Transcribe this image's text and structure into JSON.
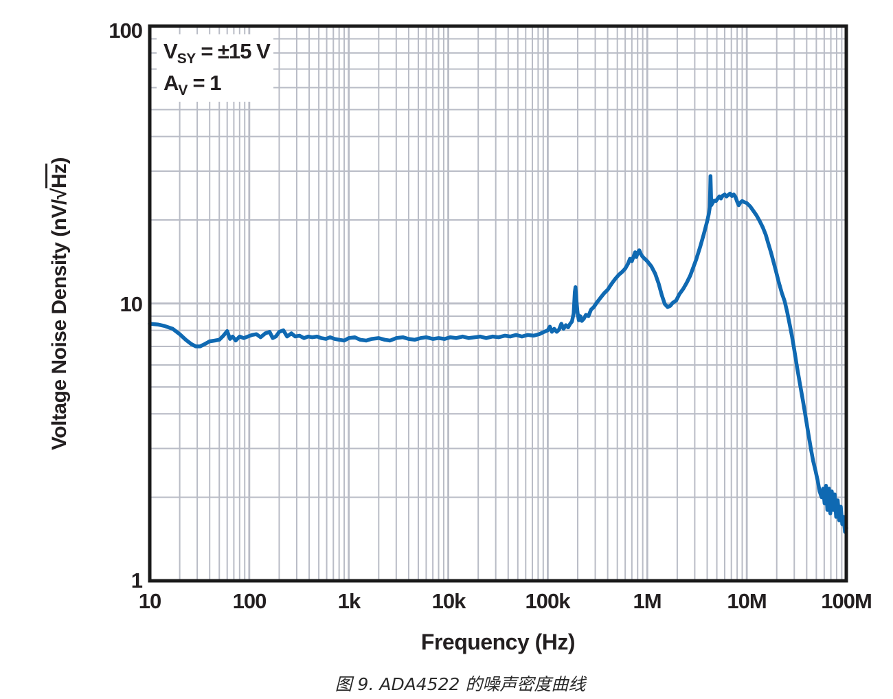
{
  "figure": {
    "caption": "图 9. ADA4522 的噪声密度曲线"
  },
  "annotation": {
    "line1": {
      "base": "V",
      "sub": "SY",
      "rest": " = ±15 V"
    },
    "line2": {
      "base": "A",
      "sub": "V",
      "rest": " = 1"
    }
  },
  "colors": {
    "curve": "#0F69B2",
    "grid": "#b9bcc6",
    "frame": "#1a1a1a",
    "text": "#231f20",
    "background": "#ffffff"
  },
  "chart_data": {
    "type": "line",
    "title": "",
    "xlabel": "Frequency (Hz)",
    "ylabel": "Voltage Noise Density (nV/√Hz)",
    "ylabel_parts": {
      "prefix": "Voltage Noise Density (nV/",
      "radical": "√",
      "overline": "Hz",
      "suffix": ")"
    },
    "x_scale": "log",
    "y_scale": "log",
    "xlim": [
      10,
      100000000
    ],
    "ylim": [
      1,
      100
    ],
    "grid": true,
    "legend": "none",
    "x_tick_labels": [
      "10",
      "100",
      "1k",
      "10k",
      "100k",
      "1M",
      "10M",
      "100M"
    ],
    "x_tick_values": [
      10,
      100,
      1000,
      10000,
      100000,
      1000000,
      10000000,
      100000000
    ],
    "y_tick_labels": [
      "100",
      "10",
      "1"
    ],
    "y_tick_values": [
      100,
      10,
      1
    ],
    "series": [
      {
        "name": "ADA4522 voltage noise density",
        "color": "#0F69B2",
        "points": [
          [
            10,
            8.45
          ],
          [
            12,
            8.4
          ],
          [
            14,
            8.3
          ],
          [
            17,
            8.1
          ],
          [
            20,
            7.75
          ],
          [
            23,
            7.4
          ],
          [
            26,
            7.15
          ],
          [
            29,
            7.0
          ],
          [
            32,
            7.0
          ],
          [
            36,
            7.15
          ],
          [
            40,
            7.3
          ],
          [
            45,
            7.35
          ],
          [
            50,
            7.4
          ],
          [
            55,
            7.65
          ],
          [
            60,
            7.95
          ],
          [
            64,
            7.45
          ],
          [
            68,
            7.6
          ],
          [
            73,
            7.35
          ],
          [
            80,
            7.6
          ],
          [
            88,
            7.5
          ],
          [
            97,
            7.6
          ],
          [
            107,
            7.7
          ],
          [
            118,
            7.75
          ],
          [
            130,
            7.55
          ],
          [
            145,
            7.8
          ],
          [
            160,
            7.9
          ],
          [
            172,
            7.5
          ],
          [
            185,
            7.6
          ],
          [
            200,
            7.9
          ],
          [
            220,
            8.0
          ],
          [
            240,
            7.6
          ],
          [
            265,
            7.8
          ],
          [
            290,
            7.6
          ],
          [
            320,
            7.65
          ],
          [
            355,
            7.5
          ],
          [
            390,
            7.6
          ],
          [
            430,
            7.55
          ],
          [
            480,
            7.6
          ],
          [
            530,
            7.5
          ],
          [
            590,
            7.45
          ],
          [
            650,
            7.55
          ],
          [
            720,
            7.45
          ],
          [
            800,
            7.4
          ],
          [
            900,
            7.35
          ],
          [
            1000,
            7.5
          ],
          [
            1150,
            7.55
          ],
          [
            1300,
            7.4
          ],
          [
            1500,
            7.35
          ],
          [
            1700,
            7.45
          ],
          [
            2000,
            7.5
          ],
          [
            2300,
            7.4
          ],
          [
            2600,
            7.35
          ],
          [
            3000,
            7.5
          ],
          [
            3500,
            7.55
          ],
          [
            4000,
            7.45
          ],
          [
            4600,
            7.4
          ],
          [
            5300,
            7.5
          ],
          [
            6000,
            7.55
          ],
          [
            7000,
            7.45
          ],
          [
            8000,
            7.5
          ],
          [
            9200,
            7.45
          ],
          [
            10500,
            7.55
          ],
          [
            12000,
            7.5
          ],
          [
            14000,
            7.6
          ],
          [
            16000,
            7.5
          ],
          [
            18500,
            7.55
          ],
          [
            21000,
            7.6
          ],
          [
            24000,
            7.5
          ],
          [
            28000,
            7.6
          ],
          [
            32000,
            7.55
          ],
          [
            37000,
            7.65
          ],
          [
            42000,
            7.6
          ],
          [
            48000,
            7.7
          ],
          [
            55000,
            7.6
          ],
          [
            63000,
            7.7
          ],
          [
            72000,
            7.65
          ],
          [
            82000,
            7.75
          ],
          [
            92000,
            7.9
          ],
          [
            100000,
            8.0
          ],
          [
            105000,
            8.25
          ],
          [
            110000,
            7.9
          ],
          [
            116000,
            8.1
          ],
          [
            123000,
            7.9
          ],
          [
            130000,
            8.05
          ],
          [
            137000,
            8.45
          ],
          [
            144000,
            8.1
          ],
          [
            152000,
            8.35
          ],
          [
            160000,
            8.2
          ],
          [
            168000,
            8.45
          ],
          [
            175000,
            8.6
          ],
          [
            182000,
            9.2
          ],
          [
            187000,
            11.0
          ],
          [
            190000,
            11.45
          ],
          [
            194000,
            10.3
          ],
          [
            199000,
            9.3
          ],
          [
            205000,
            8.7
          ],
          [
            212000,
            9.0
          ],
          [
            220000,
            8.65
          ],
          [
            230000,
            8.8
          ],
          [
            242000,
            9.1
          ],
          [
            256000,
            9.0
          ],
          [
            272000,
            9.5
          ],
          [
            290000,
            9.7
          ],
          [
            310000,
            10.05
          ],
          [
            340000,
            10.5
          ],
          [
            370000,
            10.9
          ],
          [
            400000,
            11.2
          ],
          [
            440000,
            11.8
          ],
          [
            480000,
            12.3
          ],
          [
            520000,
            12.7
          ],
          [
            560000,
            13.0
          ],
          [
            600000,
            13.35
          ],
          [
            640000,
            13.9
          ],
          [
            670000,
            14.5
          ],
          [
            700000,
            14.2
          ],
          [
            730000,
            14.8
          ],
          [
            755000,
            15.3
          ],
          [
            775000,
            14.7
          ],
          [
            800000,
            15.2
          ],
          [
            830000,
            15.55
          ],
          [
            860000,
            15.1
          ],
          [
            890000,
            14.8
          ],
          [
            930000,
            14.55
          ],
          [
            970000,
            14.35
          ],
          [
            1000000,
            14.2
          ],
          [
            1100000,
            13.6
          ],
          [
            1200000,
            12.8
          ],
          [
            1300000,
            11.8
          ],
          [
            1400000,
            10.7
          ],
          [
            1500000,
            9.95
          ],
          [
            1600000,
            9.7
          ],
          [
            1700000,
            9.8
          ],
          [
            1800000,
            10.05
          ],
          [
            1950000,
            10.25
          ],
          [
            2100000,
            10.8
          ],
          [
            2300000,
            11.3
          ],
          [
            2500000,
            11.9
          ],
          [
            2700000,
            12.6
          ],
          [
            2900000,
            13.5
          ],
          [
            3100000,
            14.4
          ],
          [
            3400000,
            16.0
          ],
          [
            3700000,
            17.8
          ],
          [
            4000000,
            19.8
          ],
          [
            4150000,
            21.0
          ],
          [
            4250000,
            22.2
          ],
          [
            4320000,
            28.8
          ],
          [
            4400000,
            22.6
          ],
          [
            4550000,
            23.1
          ],
          [
            4700000,
            23.5
          ],
          [
            4900000,
            23.4
          ],
          [
            5100000,
            23.9
          ],
          [
            5300000,
            24.3
          ],
          [
            5500000,
            23.9
          ],
          [
            5750000,
            24.5
          ],
          [
            6000000,
            24.7
          ],
          [
            6250000,
            24.3
          ],
          [
            6500000,
            24.6
          ],
          [
            6800000,
            24.9
          ],
          [
            7100000,
            24.4
          ],
          [
            7400000,
            24.7
          ],
          [
            7700000,
            24.2
          ],
          [
            8000000,
            23.3
          ],
          [
            8300000,
            22.6
          ],
          [
            8600000,
            23.1
          ],
          [
            9000000,
            23.4
          ],
          [
            9400000,
            23.2
          ],
          [
            10000000,
            23.0
          ],
          [
            10800000,
            22.4
          ],
          [
            11600000,
            21.6
          ],
          [
            12500000,
            20.8
          ],
          [
            13500000,
            19.8
          ],
          [
            14500000,
            18.8
          ],
          [
            15500000,
            17.7
          ],
          [
            16500000,
            16.4
          ],
          [
            17500000,
            15.3
          ],
          [
            18500000,
            14.2
          ],
          [
            19500000,
            13.2
          ],
          [
            21000000,
            11.9
          ],
          [
            22500000,
            10.9
          ],
          [
            24000000,
            10.2
          ],
          [
            25500000,
            9.3
          ],
          [
            27000000,
            8.4
          ],
          [
            28500000,
            7.6
          ],
          [
            30000000,
            6.8
          ],
          [
            32000000,
            5.9
          ],
          [
            34000000,
            5.2
          ],
          [
            36500000,
            4.5
          ],
          [
            39000000,
            3.9
          ],
          [
            41500000,
            3.4
          ],
          [
            44000000,
            3.0
          ],
          [
            46500000,
            2.7
          ],
          [
            49000000,
            2.5
          ],
          [
            51500000,
            2.3
          ],
          [
            54000000,
            2.1
          ],
          [
            56500000,
            2.0
          ],
          [
            58500000,
            2.15
          ],
          [
            60500000,
            1.9
          ],
          [
            62500000,
            2.2
          ],
          [
            64500000,
            1.8
          ],
          [
            67000000,
            2.15
          ],
          [
            69000000,
            1.75
          ],
          [
            71500000,
            2.1
          ],
          [
            74000000,
            1.8
          ],
          [
            76500000,
            2.05
          ],
          [
            79000000,
            1.7
          ],
          [
            82000000,
            1.95
          ],
          [
            85000000,
            1.65
          ],
          [
            88000000,
            1.85
          ],
          [
            91000000,
            1.6
          ],
          [
            94000000,
            1.7
          ],
          [
            97000000,
            1.5
          ],
          [
            100000000,
            1.55
          ]
        ]
      }
    ]
  }
}
